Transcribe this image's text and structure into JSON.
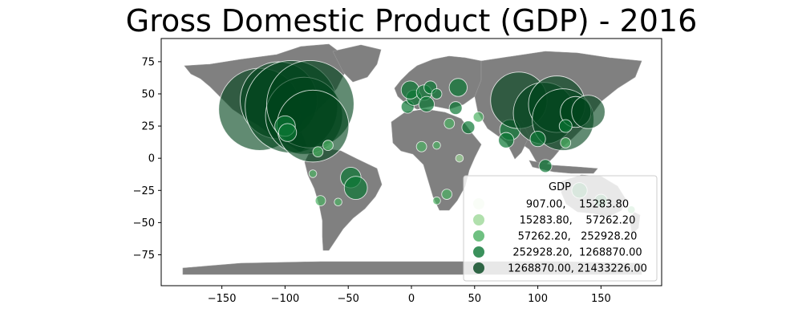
{
  "title": "Gross Domestic Product (GDP) - 2016",
  "colors": {
    "land": "#808080",
    "borders": "#9a9a9a",
    "bubble_stroke": "#ffffff",
    "bins": [
      "#f7fcf5",
      "#d5efcf",
      "#9ed898",
      "#4bb062",
      "#0a7633",
      "#00441b"
    ]
  },
  "chart_data": {
    "type": "scatter",
    "title": "Gross Domestic Product (GDP) - 2016",
    "xlabel": "",
    "ylabel": "",
    "xlim": [
      -198,
      198
    ],
    "ylim": [
      -99,
      93
    ],
    "xticks": [
      -150,
      -100,
      -50,
      0,
      50,
      100,
      150
    ],
    "yticks": [
      75,
      50,
      25,
      0,
      -25,
      -50,
      -75
    ],
    "legend": {
      "title": "GDP",
      "placement": "lower-right",
      "entries": [
        "907.00,    15283.80",
        "15283.80,    57262.20",
        "57262.20,   252928.20",
        "252928.20,  1268870.00",
        "1268870.00, 21433226.00"
      ]
    },
    "points": [
      {
        "lon": -120,
        "lat": 38,
        "bin": 5,
        "size": 32
      },
      {
        "lon": -105,
        "lat": 45,
        "bin": 5,
        "size": 30
      },
      {
        "lon": -95,
        "lat": 40,
        "bin": 5,
        "size": 36
      },
      {
        "lon": -85,
        "lat": 33,
        "bin": 5,
        "size": 30
      },
      {
        "lon": -80,
        "lat": 42,
        "bin": 5,
        "size": 34
      },
      {
        "lon": -78,
        "lat": 25,
        "bin": 5,
        "size": 28
      },
      {
        "lon": -100,
        "lat": 25,
        "bin": 4,
        "size": 8
      },
      {
        "lon": -98,
        "lat": 20,
        "bin": 4,
        "size": 7
      },
      {
        "lon": -66,
        "lat": 10,
        "bin": 3,
        "size": 4
      },
      {
        "lon": -74,
        "lat": 5,
        "bin": 3,
        "size": 4
      },
      {
        "lon": -78,
        "lat": -12,
        "bin": 3,
        "size": 3
      },
      {
        "lon": -48,
        "lat": -15,
        "bin": 4,
        "size": 8
      },
      {
        "lon": -44,
        "lat": -23,
        "bin": 4,
        "size": 9
      },
      {
        "lon": -72,
        "lat": -33,
        "bin": 3,
        "size": 4
      },
      {
        "lon": -58,
        "lat": -34,
        "bin": 3,
        "size": 3
      },
      {
        "lon": -3,
        "lat": 40,
        "bin": 4,
        "size": 5
      },
      {
        "lon": 2,
        "lat": 47,
        "bin": 4,
        "size": 6
      },
      {
        "lon": -1,
        "lat": 53,
        "bin": 4,
        "size": 7
      },
      {
        "lon": 10,
        "lat": 51,
        "bin": 4,
        "size": 6
      },
      {
        "lon": 12,
        "lat": 42,
        "bin": 4,
        "size": 6
      },
      {
        "lon": 15,
        "lat": 55,
        "bin": 4,
        "size": 5
      },
      {
        "lon": 20,
        "lat": 50,
        "bin": 4,
        "size": 4
      },
      {
        "lon": 35,
        "lat": 39,
        "bin": 4,
        "size": 5
      },
      {
        "lon": 37,
        "lat": 55,
        "bin": 4,
        "size": 7
      },
      {
        "lon": 45,
        "lat": 24,
        "bin": 4,
        "size": 5
      },
      {
        "lon": 53,
        "lat": 32,
        "bin": 3,
        "size": 4
      },
      {
        "lon": 30,
        "lat": 27,
        "bin": 3,
        "size": 4
      },
      {
        "lon": 20,
        "lat": 10,
        "bin": 3,
        "size": 3
      },
      {
        "lon": 8,
        "lat": 9,
        "bin": 3,
        "size": 4
      },
      {
        "lon": 38,
        "lat": 0,
        "bin": 2,
        "size": 3
      },
      {
        "lon": 28,
        "lat": -28,
        "bin": 3,
        "size": 4
      },
      {
        "lon": 20,
        "lat": -33,
        "bin": 3,
        "size": 3
      },
      {
        "lon": 78,
        "lat": 22,
        "bin": 4,
        "size": 8
      },
      {
        "lon": 75,
        "lat": 14,
        "bin": 4,
        "size": 6
      },
      {
        "lon": 85,
        "lat": 45,
        "bin": 5,
        "size": 22
      },
      {
        "lon": 105,
        "lat": 35,
        "bin": 5,
        "size": 24
      },
      {
        "lon": 115,
        "lat": 42,
        "bin": 5,
        "size": 22
      },
      {
        "lon": 120,
        "lat": 30,
        "bin": 5,
        "size": 24
      },
      {
        "lon": 130,
        "lat": 36,
        "bin": 5,
        "size": 12
      },
      {
        "lon": 140,
        "lat": 36,
        "bin": 5,
        "size": 13
      },
      {
        "lon": 122,
        "lat": 25,
        "bin": 4,
        "size": 5
      },
      {
        "lon": 100,
        "lat": 15,
        "bin": 4,
        "size": 6
      },
      {
        "lon": 106,
        "lat": -6,
        "bin": 4,
        "size": 5
      },
      {
        "lon": 122,
        "lat": 12,
        "bin": 3,
        "size": 4
      },
      {
        "lon": 133,
        "lat": -25,
        "bin": 4,
        "size": 6
      },
      {
        "lon": 150,
        "lat": -33,
        "bin": 4,
        "size": 5
      },
      {
        "lon": 174,
        "lat": -40,
        "bin": 3,
        "size": 3
      }
    ]
  }
}
